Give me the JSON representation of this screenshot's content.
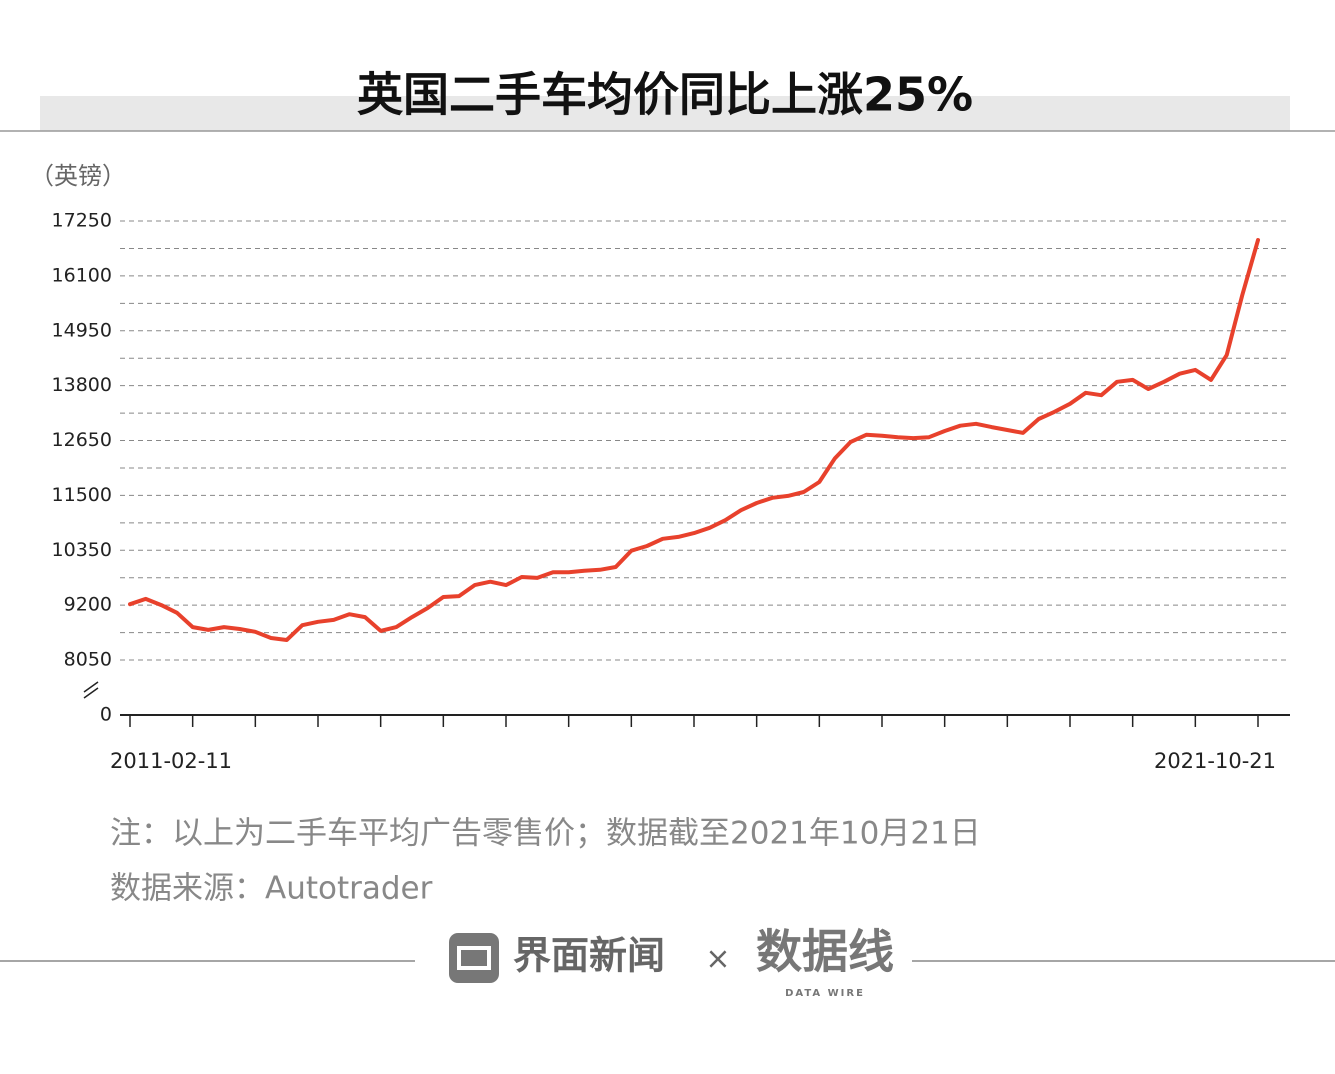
{
  "chart_data": {
    "type": "line",
    "title": "英国二手车均价同比上涨25%",
    "y_unit": "（英镑）",
    "categories": [
      "2011-02-11",
      null,
      null,
      null,
      null,
      null,
      null,
      null,
      null,
      null,
      null,
      null,
      null,
      null,
      null,
      null,
      null,
      null,
      null,
      null,
      null,
      null,
      null,
      null,
      null,
      null,
      null,
      null,
      null,
      null,
      null,
      null,
      null,
      null,
      null,
      null,
      null,
      null,
      null,
      null,
      null,
      null,
      null,
      null,
      null,
      null,
      null,
      null,
      null,
      null,
      null,
      null,
      null,
      null,
      null,
      null,
      null,
      null,
      null,
      null,
      null,
      null,
      null,
      null,
      null,
      null,
      null,
      null,
      null,
      null,
      null,
      null,
      "2021-10-21"
    ],
    "series": [
      {
        "name": "二手车平均广告零售价",
        "color": "#e8412c",
        "values": [
          9220,
          9330,
          9200,
          9040,
          8740,
          8680,
          8740,
          8700,
          8640,
          8510,
          8470,
          8780,
          8850,
          8890,
          9010,
          8950,
          8660,
          8740,
          8950,
          9140,
          9370,
          9390,
          9620,
          9690,
          9620,
          9790,
          9770,
          9890,
          9890,
          9920,
          9940,
          10000,
          10340,
          10440,
          10590,
          10630,
          10710,
          10820,
          10980,
          11190,
          11340,
          11450,
          11490,
          11570,
          11780,
          12280,
          12620,
          12770,
          12750,
          12720,
          12700,
          12720,
          12850,
          12960,
          13000,
          12930,
          12870,
          12810,
          13100,
          13250,
          13420,
          13650,
          13600,
          13880,
          13920,
          13730,
          13880,
          14050,
          14130,
          13920,
          14440,
          15700,
          16850
        ]
      }
    ],
    "ylim": [
      0,
      17250
    ],
    "yticks": [
      0,
      8050,
      9200,
      10350,
      11500,
      12650,
      13800,
      14950,
      16100,
      17250
    ],
    "axis_break": true,
    "grid": true,
    "notes": [
      "注：以上为二手车平均广告零售价；数据截至2021年10月21日",
      "数据来源：Autotrader"
    ]
  },
  "footer": {
    "brand1": "界面新闻",
    "separator": "×",
    "brand2": "数据线",
    "brand2_sub": "DATA WIRE"
  }
}
